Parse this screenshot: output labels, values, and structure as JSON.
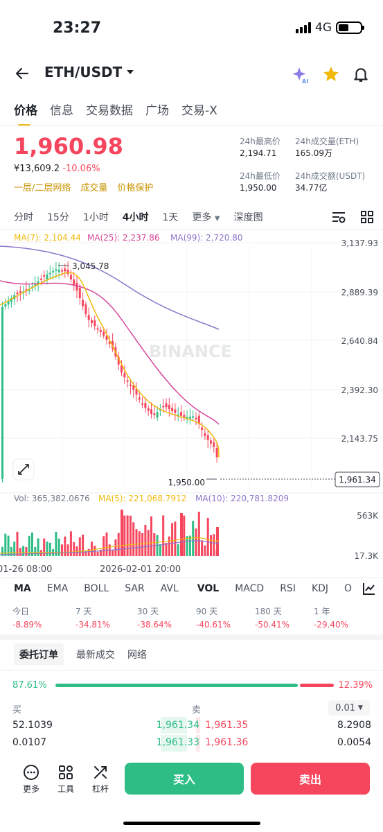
{
  "status": {
    "time": "23:27",
    "network": "4G"
  },
  "header": {
    "pair": "ETH/USDT"
  },
  "tabs": [
    "价格",
    "信息",
    "交易数据",
    "广场",
    "交易-X"
  ],
  "ticker": {
    "price": "1,960.98",
    "cny": "¥13,609.2",
    "change": "-10.06%",
    "tags": [
      "一层/二层网络",
      "成交量",
      "价格保护"
    ],
    "stats": {
      "high_label": "24h最高价",
      "high": "2,194.71",
      "low_label": "24h最低价",
      "low": "1,950.00",
      "vol_eth_label": "24h成交量(ETH)",
      "vol_eth": "165.09万",
      "vol_usdt_label": "24h成交额(USDT)",
      "vol_usdt": "34.77亿"
    }
  },
  "intervals": [
    "分时",
    "15分",
    "1小时",
    "4小时",
    "1天",
    "更多",
    "深度图"
  ],
  "chart": {
    "ma7": "MA(7): 2,104.44",
    "ma25": "MA(25): 2,237.86",
    "ma99": "MA(99): 2,720.80",
    "price_axis": [
      "3,137.93",
      "2,889.39",
      "2,640.84",
      "2,392.30",
      "2,143.75"
    ],
    "high_mark": "3,045.78",
    "low_mark": "1,950.00",
    "current": "1,961.34",
    "watermark": "BINANCE",
    "vol": "Vol: 365,382.0676",
    "vma5": "MA(5): 221,068.7912",
    "vma10": "MA(10): 220,781.8209",
    "vol_axis": [
      "563K",
      "17.3K"
    ],
    "time_axis": [
      "01-26 08:00",
      "2026-02-01 20:00"
    ],
    "colors": {
      "up": "#2ebd85",
      "down": "#f6465d",
      "ma7": "#f0b90b",
      "ma25": "#d6479a",
      "ma99": "#8c76c9"
    }
  },
  "indicators": [
    "MA",
    "EMA",
    "BOLL",
    "SAR",
    "AVL",
    "VOL",
    "MACD",
    "RSI",
    "KDJ",
    "O"
  ],
  "performance": [
    {
      "label": "今日",
      "value": "-8.89%"
    },
    {
      "label": "7 天",
      "value": "-34.81%"
    },
    {
      "label": "30 天",
      "value": "-38.64%"
    },
    {
      "label": "90 天",
      "value": "-40.61%"
    },
    {
      "label": "180 天",
      "value": "-50.41%"
    },
    {
      "label": "1 年",
      "value": "-29.40%"
    }
  ],
  "orderbook": {
    "tabs": [
      "委托订单",
      "最新成交",
      "网络"
    ],
    "buy_ratio": "87.61%",
    "sell_ratio": "12.39%",
    "buy_label": "买",
    "sell_label": "卖",
    "precision": "0.01",
    "rows": [
      {
        "bid_qty": "52.1039",
        "bid": "1,961.34",
        "ask": "1,961.35",
        "ask_qty": "8.2908"
      },
      {
        "bid_qty": "0.0107",
        "bid": "1,961.33",
        "ask": "1,961.36",
        "ask_qty": "0.0054"
      }
    ]
  },
  "bottom": {
    "more": "更多",
    "tools": "工具",
    "leverage": "杠杆",
    "buy": "买入",
    "sell": "卖出"
  }
}
